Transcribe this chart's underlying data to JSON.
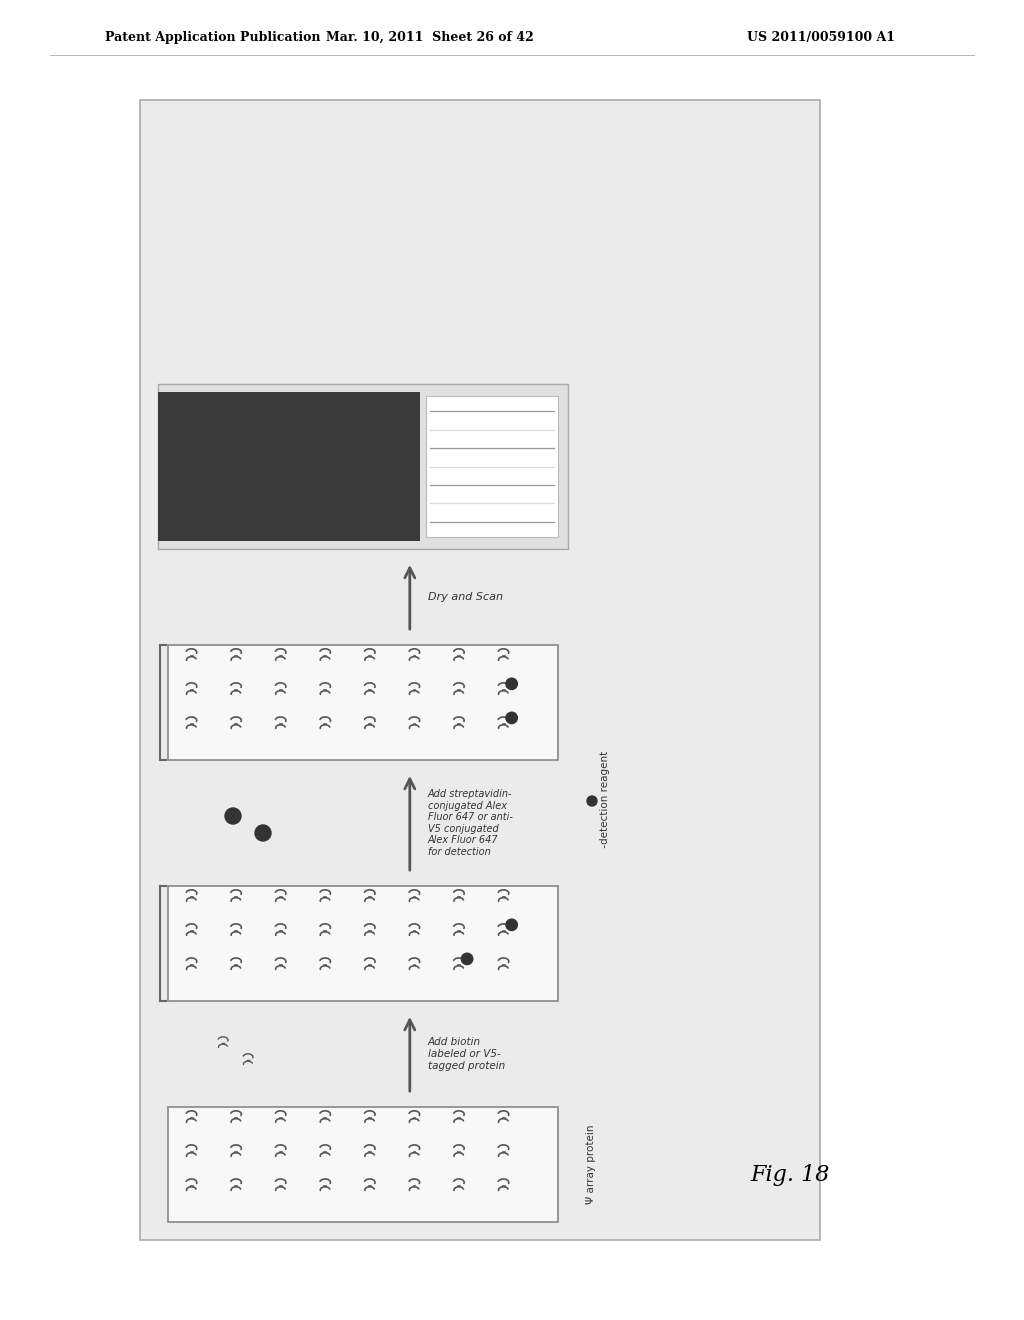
{
  "title_left": "Patent Application Publication",
  "title_mid": "Mar. 10, 2011  Sheet 26 of 42",
  "title_right": "US 2011/0059100 A1",
  "fig_label": "Fig. 18",
  "step1_label": "Add biotin\nlabeled or V5-\ntagged protein",
  "step2_label": "Add streptavidin-\nconjugated Alex\nFluor 647 or anti-\nV5 conjugated\nAlex Fluor 647\nfor detection",
  "step3_label": "Dry and Scan",
  "legend_array": "Ψ array protein",
  "legend_detect": "● -detection reagent",
  "outer_bg": "#e8e8e8",
  "panel_bg": "#ffffff",
  "scan_dark": "#4a4a4a",
  "scan_light": "#dddddd",
  "arrow_color": "#555555",
  "symbol_color": "#555555",
  "text_color": "#333333",
  "panel_rows": 3,
  "panel_cols": 8
}
